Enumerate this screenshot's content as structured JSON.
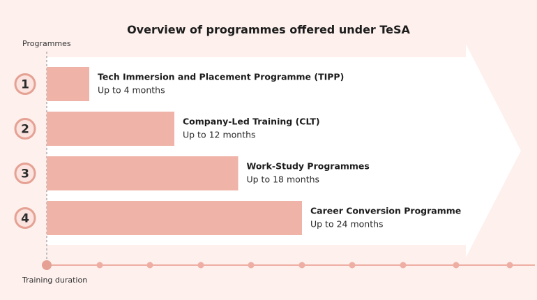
{
  "chart_data": {
    "type": "bar",
    "orientation": "horizontal",
    "title": "Overview of programmes offered under TeSA",
    "ylabel": "Programmes",
    "xlabel": "Training duration",
    "x_unit": "months",
    "xlim": [
      0,
      24
    ],
    "categories": [
      {
        "number": "1",
        "name": "Tech Immersion and Placement Programme (TIPP)",
        "duration_label": "Up to 4 months",
        "value": 4
      },
      {
        "number": "2",
        "name": "Company-Led Training (CLT)",
        "duration_label": "Up to 12 months",
        "value": 12
      },
      {
        "number": "3",
        "name": "Work-Study Programmes",
        "duration_label": "Up to 18 months",
        "value": 18
      },
      {
        "number": "4",
        "name": "Career Conversion Programme",
        "duration_label": "Up to 24 months",
        "value": 24
      }
    ],
    "colors": {
      "background": "#fdf0ed",
      "arrow": "#ffffff",
      "bar": "#efb3a8",
      "accent": "#e5a193",
      "tick": "#eeaea3"
    }
  }
}
